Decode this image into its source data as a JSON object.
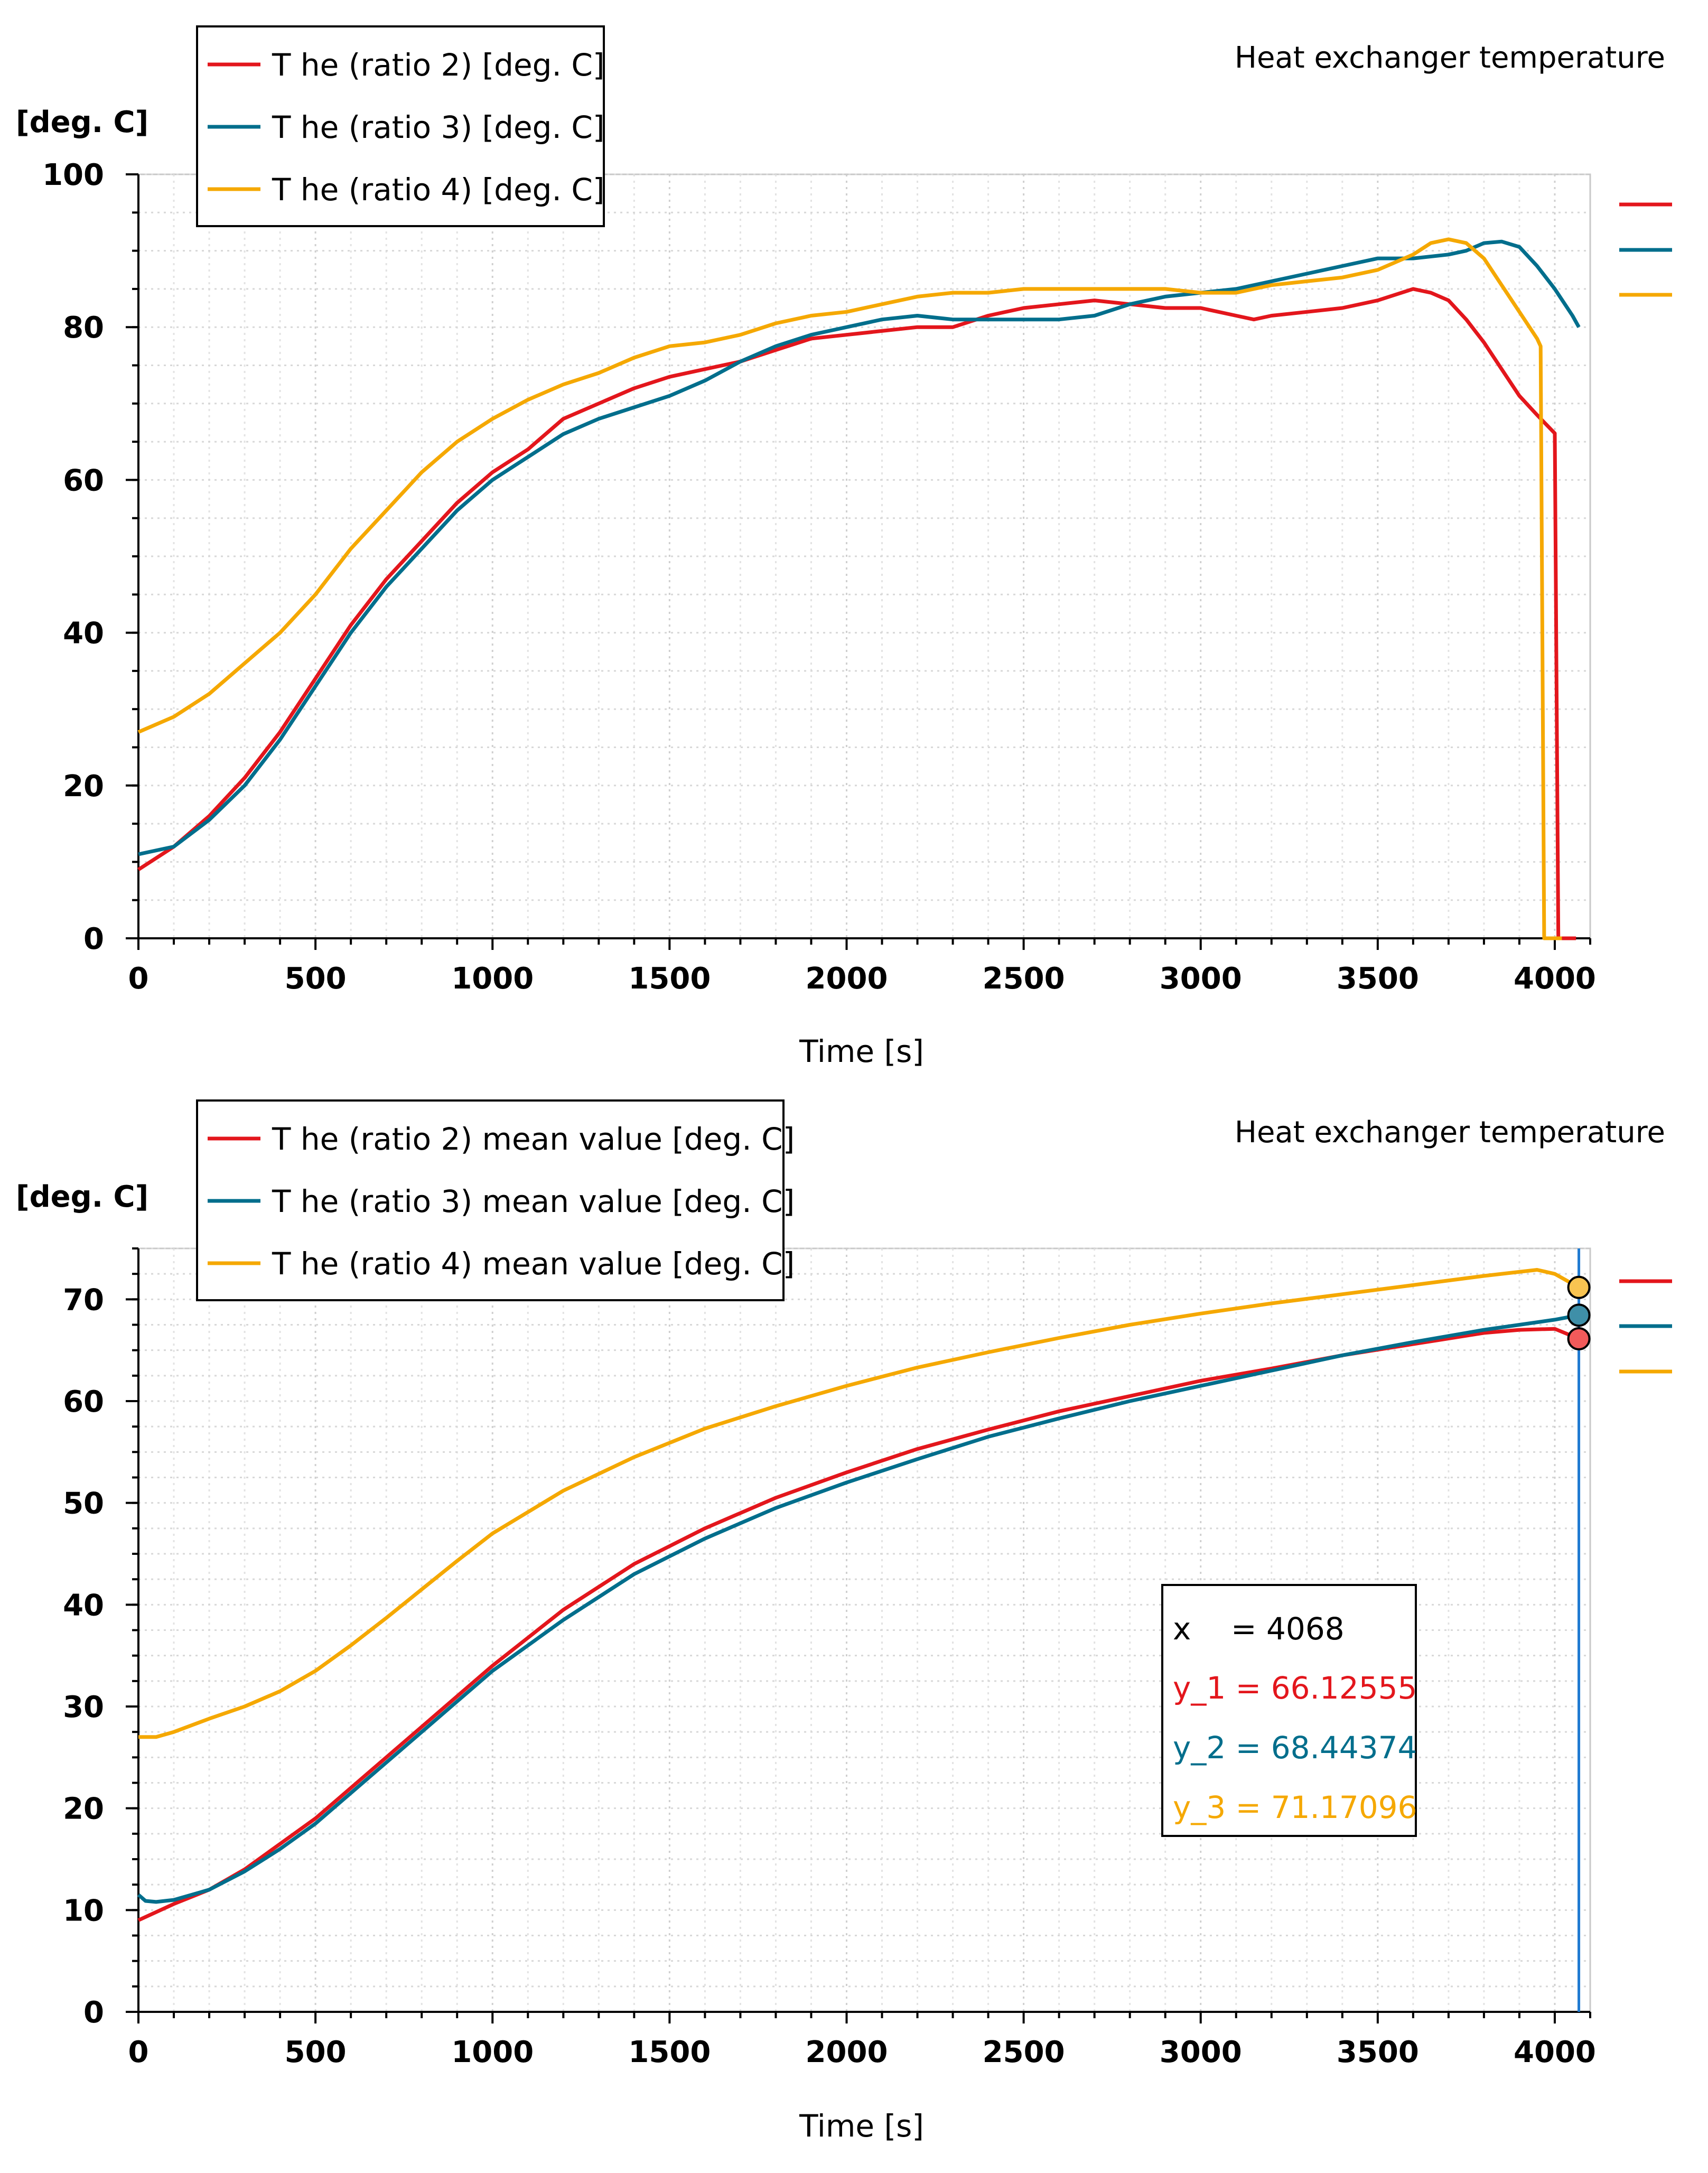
{
  "charts": [
    {
      "title": "Heat exchanger temperature",
      "ylabel": "[deg. C]",
      "xlabel": "Time [s]",
      "chart_data": {
        "type": "line",
        "title": "Heat exchanger temperature",
        "xlabel": "Time [s]",
        "ylabel": "[deg. C]",
        "xlim": [
          0,
          4100
        ],
        "ylim": [
          0,
          100
        ],
        "xticks": [
          0,
          500,
          1000,
          1500,
          2000,
          2500,
          3000,
          3500,
          4000
        ],
        "yticks": [
          0,
          20,
          40,
          60,
          80,
          100
        ],
        "grid": true,
        "legend_position": "top-left",
        "series": [
          {
            "name": "T he (ratio 2) [deg. C]",
            "color": "#e3161c",
            "x": [
              0,
              100,
              200,
              300,
              400,
              500,
              600,
              700,
              800,
              900,
              1000,
              1100,
              1200,
              1300,
              1400,
              1500,
              1600,
              1700,
              1800,
              1900,
              2000,
              2100,
              2200,
              2300,
              2400,
              2500,
              2600,
              2700,
              2800,
              2900,
              3000,
              3100,
              3150,
              3200,
              3300,
              3400,
              3500,
              3600,
              3650,
              3700,
              3750,
              3800,
              3850,
              3900,
              3950,
              4000,
              4010,
              4020,
              4060
            ],
            "y": [
              9,
              12,
              16,
              21,
              27,
              34,
              41,
              47,
              52,
              57,
              61,
              64,
              68,
              70,
              72,
              73.5,
              74.5,
              75.5,
              77,
              78.5,
              79,
              79.5,
              80,
              80,
              81.5,
              82.5,
              83,
              83.5,
              83,
              82.5,
              82.5,
              81.5,
              81,
              81.5,
              82,
              82.5,
              83.5,
              85,
              84.5,
              83.5,
              81,
              78,
              74.5,
              71,
              68.5,
              66.1,
              0,
              0,
              0
            ]
          },
          {
            "name": "T he (ratio 3) [deg. C]",
            "color": "#006e8c",
            "x": [
              0,
              100,
              200,
              300,
              400,
              500,
              600,
              700,
              800,
              900,
              1000,
              1100,
              1200,
              1300,
              1400,
              1500,
              1600,
              1700,
              1800,
              1900,
              2000,
              2100,
              2200,
              2300,
              2400,
              2500,
              2600,
              2700,
              2800,
              2900,
              3000,
              3100,
              3200,
              3300,
              3400,
              3500,
              3600,
              3700,
              3750,
              3800,
              3850,
              3900,
              3950,
              4000,
              4050,
              4068
            ],
            "y": [
              11,
              12,
              15.5,
              20,
              26,
              33,
              40,
              46,
              51,
              56,
              60,
              63,
              66,
              68,
              69.5,
              71,
              73,
              75.5,
              77.5,
              79,
              80,
              81,
              81.5,
              81,
              81,
              81,
              81,
              81.5,
              83,
              84,
              84.5,
              85,
              86,
              87,
              88,
              89,
              89,
              89.5,
              90,
              91,
              91.2,
              90.5,
              88,
              85,
              81.5,
              80
            ]
          },
          {
            "name": "T he (ratio 4) [deg. C]",
            "color": "#f5a800",
            "x": [
              0,
              100,
              200,
              300,
              400,
              500,
              600,
              700,
              800,
              900,
              1000,
              1100,
              1200,
              1300,
              1400,
              1500,
              1600,
              1700,
              1800,
              1900,
              2000,
              2100,
              2200,
              2300,
              2400,
              2500,
              2600,
              2700,
              2800,
              2900,
              3000,
              3100,
              3200,
              3300,
              3400,
              3500,
              3600,
              3650,
              3700,
              3750,
              3800,
              3850,
              3900,
              3950,
              3960,
              3970,
              4000,
              4020
            ],
            "y": [
              27,
              29,
              32,
              36,
              40,
              45,
              51,
              56,
              61,
              65,
              68,
              70.5,
              72.5,
              74,
              76,
              77.5,
              78,
              79,
              80.5,
              81.5,
              82,
              83,
              84,
              84.5,
              84.5,
              85,
              85,
              85,
              85,
              85,
              84.5,
              84.5,
              85.5,
              86,
              86.5,
              87.5,
              89.5,
              91,
              91.5,
              91,
              89,
              85.5,
              82,
              78.5,
              77.5,
              0,
              0,
              0
            ]
          }
        ]
      }
    },
    {
      "title": "Heat exchanger temperature",
      "ylabel": "[deg. C]",
      "xlabel": "Time [s]",
      "cursor": {
        "x_label": "x",
        "x_value": "= 4068",
        "y1": "y_1 = 66.12555",
        "y2": "y_2 = 68.44374",
        "y3": "y_3 = 71.17096"
      },
      "chart_data": {
        "type": "line",
        "title": "Heat exchanger temperature",
        "xlabel": "Time [s]",
        "ylabel": "[deg. C]",
        "xlim": [
          0,
          4100
        ],
        "ylim": [
          0,
          75
        ],
        "xticks": [
          0,
          500,
          1000,
          1500,
          2000,
          2500,
          3000,
          3500,
          4000
        ],
        "yticks": [
          0,
          10,
          20,
          30,
          40,
          50,
          60,
          70
        ],
        "grid": true,
        "legend_position": "top-left",
        "cursor_x": 4068,
        "cursor_values": [
          66.12555,
          68.44374,
          71.17096
        ],
        "series": [
          {
            "name": "T he (ratio 2) mean value [deg. C]",
            "color": "#e3161c",
            "x": [
              0,
              50,
              100,
              200,
              300,
              400,
              500,
              600,
              700,
              800,
              900,
              1000,
              1200,
              1400,
              1600,
              1800,
              2000,
              2200,
              2400,
              2600,
              2800,
              3000,
              3200,
              3400,
              3600,
              3800,
              3900,
              4000,
              4068
            ],
            "y": [
              9,
              9.8,
              10.6,
              12,
              14,
              16.5,
              19,
              22,
              25,
              28,
              31,
              34,
              39.5,
              44,
              47.5,
              50.5,
              53,
              55.3,
              57.2,
              59,
              60.5,
              62,
              63.2,
              64.5,
              65.6,
              66.7,
              67,
              67.1,
              66.12555
            ]
          },
          {
            "name": "T he (ratio 3) mean value [deg. C]",
            "color": "#006e8c",
            "x": [
              0,
              20,
              50,
              100,
              200,
              300,
              400,
              500,
              600,
              700,
              800,
              900,
              1000,
              1200,
              1400,
              1600,
              1800,
              2000,
              2200,
              2400,
              2600,
              2800,
              3000,
              3200,
              3400,
              3600,
              3800,
              4000,
              4068
            ],
            "y": [
              11.5,
              10.9,
              10.8,
              11,
              12,
              13.8,
              16,
              18.5,
              21.5,
              24.5,
              27.5,
              30.5,
              33.5,
              38.5,
              43,
              46.5,
              49.5,
              52,
              54.3,
              56.5,
              58.3,
              60,
              61.5,
              63,
              64.5,
              65.8,
              67,
              68,
              68.44374
            ]
          },
          {
            "name": "T he (ratio 4) mean value [deg. C]",
            "color": "#f5a800",
            "x": [
              0,
              50,
              100,
              200,
              300,
              400,
              500,
              600,
              700,
              800,
              900,
              1000,
              1200,
              1400,
              1600,
              1800,
              2000,
              2200,
              2400,
              2600,
              2800,
              3000,
              3200,
              3400,
              3600,
              3800,
              3950,
              4000,
              4068
            ],
            "y": [
              27,
              27,
              27.5,
              28.8,
              30,
              31.5,
              33.5,
              36,
              38.7,
              41.5,
              44.3,
              47,
              51.2,
              54.5,
              57.3,
              59.5,
              61.5,
              63.3,
              64.8,
              66.2,
              67.5,
              68.6,
              69.6,
              70.5,
              71.4,
              72.3,
              72.9,
              72.5,
              71.17096
            ]
          }
        ]
      }
    }
  ]
}
